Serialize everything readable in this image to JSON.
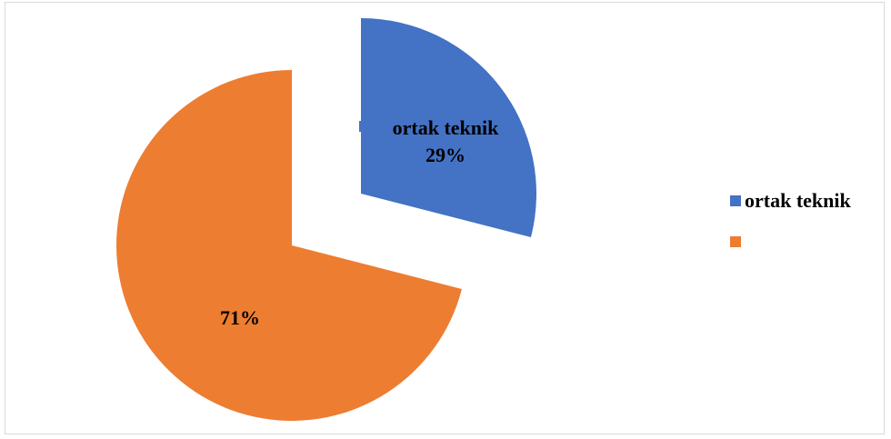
{
  "chart_data": {
    "type": "pie",
    "series": [
      {
        "categories": [
          "ortak teknik",
          ""
        ],
        "values": [
          29,
          71
        ],
        "colors": [
          "#4472C4",
          "#ED7D31"
        ],
        "data_labels": [
          {
            "category": "ortak teknik",
            "value": "29%"
          },
          {
            "category": "",
            "value": "71%"
          }
        ]
      }
    ],
    "exploded": true,
    "legend_position": "right",
    "legend": [
      {
        "label": "ortak teknik",
        "color": "#4472C4"
      },
      {
        "label": "",
        "color": "#ED7D31"
      }
    ]
  }
}
